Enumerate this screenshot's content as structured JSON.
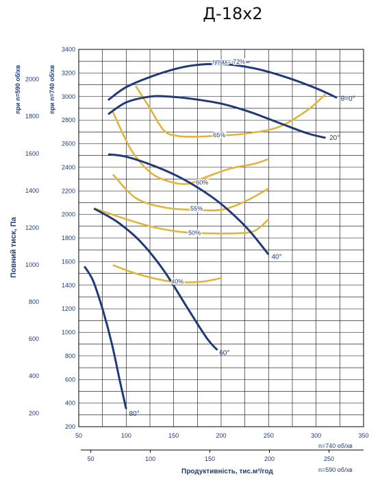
{
  "chart_data": {
    "type": "line",
    "title": "Д-18х2",
    "ylabel": "Повний тиск, Па",
    "ylabel_740": "при n=740 об/хв",
    "ylabel_590": "при n=590 об/хв",
    "xlabel": "Продуктивність, тис.м³/год",
    "x_axis_note_740": "n=740 об/хв",
    "x_axis_note_590": "n=590 об/хв",
    "x_range_740": [
      50,
      350
    ],
    "y_range_740": [
      200,
      3400
    ],
    "x_ticks_740": [
      50,
      100,
      150,
      200,
      250,
      300,
      350
    ],
    "x_ticks_590": [
      50,
      100,
      150,
      200,
      250
    ],
    "y_ticks_740": [
      3400,
      3200,
      3000,
      2800,
      2600,
      2400,
      2200,
      2000,
      1800,
      1600,
      1400,
      1200,
      1000,
      800,
      600,
      400,
      200
    ],
    "y_ticks_590": [
      2000,
      1800,
      1600,
      1400,
      1200,
      1000,
      800,
      600,
      400,
      200
    ],
    "grid": true,
    "blade_angle_curves": [
      {
        "name": "θ=0°",
        "label": "θ=0°",
        "points": [
          [
            81,
            2970
          ],
          [
            100,
            3080
          ],
          [
            130,
            3180
          ],
          [
            160,
            3250
          ],
          [
            185,
            3275
          ],
          [
            210,
            3270
          ],
          [
            240,
            3230
          ],
          [
            270,
            3160
          ],
          [
            300,
            3070
          ],
          [
            322,
            2990
          ]
        ]
      },
      {
        "name": "20°",
        "label": "20°",
        "points": [
          [
            81,
            2850
          ],
          [
            100,
            2950
          ],
          [
            125,
            3000
          ],
          [
            145,
            3000
          ],
          [
            170,
            2980
          ],
          [
            200,
            2940
          ],
          [
            230,
            2870
          ],
          [
            260,
            2780
          ],
          [
            290,
            2690
          ],
          [
            310,
            2650
          ]
        ]
      },
      {
        "name": "40°",
        "label": "40°",
        "points": [
          [
            81,
            2510
          ],
          [
            100,
            2490
          ],
          [
            130,
            2410
          ],
          [
            160,
            2300
          ],
          [
            190,
            2150
          ],
          [
            210,
            2020
          ],
          [
            230,
            1860
          ],
          [
            250,
            1660
          ]
        ]
      },
      {
        "name": "60°",
        "label": "60°",
        "points": [
          [
            66,
            2050
          ],
          [
            90,
            1940
          ],
          [
            115,
            1770
          ],
          [
            140,
            1520
          ],
          [
            165,
            1200
          ],
          [
            185,
            950
          ],
          [
            196,
            850
          ]
        ]
      },
      {
        "name": "80°",
        "label": "80°",
        "points": [
          [
            56,
            1560
          ],
          [
            65,
            1440
          ],
          [
            75,
            1200
          ],
          [
            85,
            900
          ],
          [
            93,
            600
          ],
          [
            100,
            350
          ]
        ]
      }
    ],
    "efficiency_curves": [
      {
        "name": "ηmax=72%",
        "label": "ηmax= 72%",
        "points": [
          [
            186,
            3275
          ],
          [
            230,
            3290
          ]
        ]
      },
      {
        "name": "65%",
        "label": "65%",
        "points": [
          [
            110,
            3090
          ],
          [
            125,
            2900
          ],
          [
            140,
            2710
          ],
          [
            155,
            2665
          ],
          [
            175,
            2660
          ],
          [
            200,
            2670
          ],
          [
            225,
            2685
          ],
          [
            260,
            2740
          ],
          [
            290,
            2880
          ],
          [
            310,
            3020
          ]
        ]
      },
      {
        "name": "60%",
        "label": "60%",
        "points": [
          [
            86,
            2870
          ],
          [
            105,
            2550
          ],
          [
            125,
            2360
          ],
          [
            145,
            2280
          ],
          [
            165,
            2260
          ],
          [
            185,
            2320
          ],
          [
            210,
            2390
          ],
          [
            235,
            2430
          ],
          [
            250,
            2470
          ]
        ]
      },
      {
        "name": "55%",
        "label": "55%",
        "points": [
          [
            86,
            2340
          ],
          [
            110,
            2140
          ],
          [
            140,
            2060
          ],
          [
            170,
            2040
          ],
          [
            200,
            2040
          ],
          [
            225,
            2110
          ],
          [
            250,
            2220
          ]
        ]
      },
      {
        "name": "50%",
        "label": "50%",
        "points": [
          [
            67,
            2050
          ],
          [
            100,
            1960
          ],
          [
            130,
            1890
          ],
          [
            160,
            1850
          ],
          [
            185,
            1840
          ],
          [
            215,
            1840
          ],
          [
            235,
            1860
          ],
          [
            250,
            1960
          ]
        ]
      },
      {
        "name": "40%",
        "label": "40%",
        "points": [
          [
            86,
            1570
          ],
          [
            110,
            1500
          ],
          [
            140,
            1440
          ],
          [
            160,
            1425
          ],
          [
            180,
            1430
          ],
          [
            200,
            1460
          ]
        ]
      }
    ],
    "colors": {
      "angle_curve": "#1e3a78",
      "efficiency_curve": "#e2b43a",
      "axis_text": "#1e3a78",
      "grid": "#000000"
    }
  }
}
